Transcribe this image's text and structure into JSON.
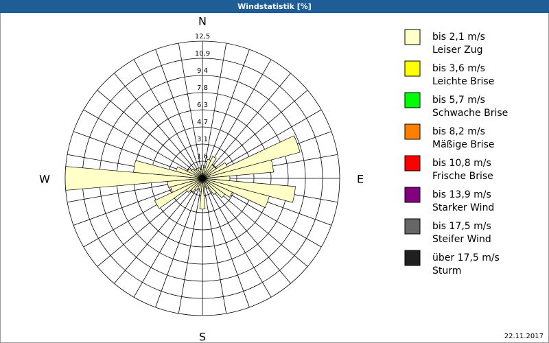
{
  "chart_data": {
    "type": "windrose",
    "title": "Windstatistik [%]",
    "categories": [
      "N",
      null,
      null,
      null,
      null,
      null,
      null,
      null,
      null,
      "E",
      null,
      null,
      null,
      null,
      null,
      null,
      null,
      null,
      "S",
      null,
      null,
      null,
      null,
      null,
      null,
      null,
      null,
      "W",
      null,
      null,
      null,
      null,
      null,
      null,
      null,
      null
    ],
    "series": [
      {
        "name": "bis 2,1 m/s",
        "description": "Leiser Zug",
        "color": "#ffffc8",
        "values": [
          1.2,
          1.0,
          1.8,
          2.2,
          1.5,
          1.5,
          2.5,
          9.2,
          6.5,
          2.5,
          8.5,
          6.3,
          3.0,
          2.5,
          1.8,
          1.0,
          0.8,
          0.8,
          2.8,
          1.2,
          1.0,
          1.2,
          1.5,
          1.8,
          4.8,
          3.0,
          3.2,
          12.5,
          6.3,
          2.5,
          1.5,
          1.2,
          1.0,
          1.0,
          1.0,
          0.8
        ]
      },
      {
        "name": "bis 3,6 m/s",
        "description": "Leichte Brise",
        "color": "#ffff00"
      },
      {
        "name": "bis 5,7 m/s",
        "description": "Schwache Brise",
        "color": "#00ff00"
      },
      {
        "name": "bis 8,2 m/s",
        "description": "Mäßige Brise",
        "color": "#ff8000"
      },
      {
        "name": "bis 10,8 m/s",
        "description": "Frische Brise",
        "color": "#ff0000"
      },
      {
        "name": "bis 13,9 m/s",
        "description": "Starker Wind",
        "color": "#800080"
      },
      {
        "name": "bis 17,5 m/s",
        "description": "Steifer Wind",
        "color": "#666666"
      },
      {
        "name": "über 17,5 m/s",
        "description": "Sturm",
        "color": "#202020"
      }
    ],
    "rlim": [
      0,
      12.5
    ],
    "rticks": [
      {
        "value": 1.5625,
        "label": "1,6"
      },
      {
        "value": 3.125,
        "label": "3,1"
      },
      {
        "value": 4.6875,
        "label": "4,7"
      },
      {
        "value": 6.25,
        "label": "6,3"
      },
      {
        "value": 7.8125,
        "label": "7,8"
      },
      {
        "value": 9.375,
        "label": "9,4"
      },
      {
        "value": 10.9375,
        "label": "10,9"
      },
      {
        "value": 12.5,
        "label": "12,5"
      }
    ],
    "date": "22.11.2017"
  }
}
